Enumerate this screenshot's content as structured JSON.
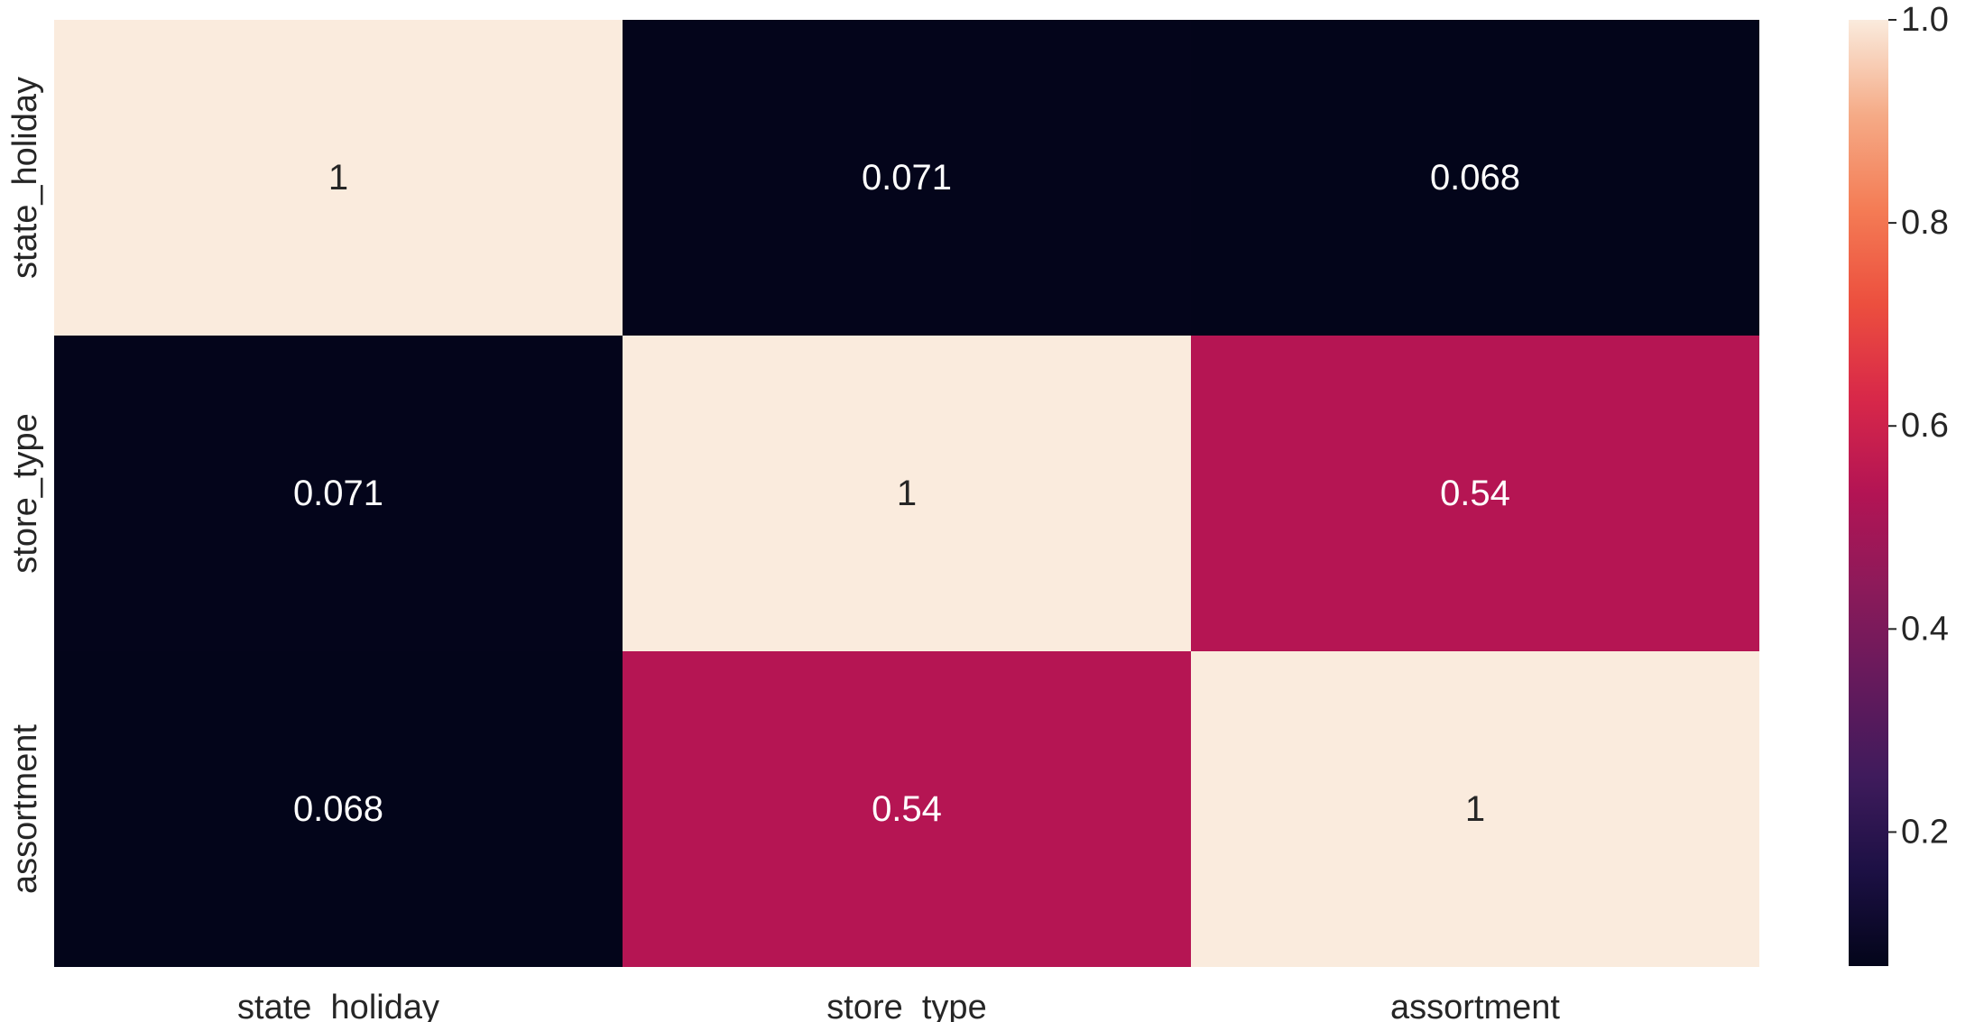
{
  "chart_data": {
    "type": "heatmap",
    "title": "",
    "xlabel": "",
    "ylabel": "",
    "x_categories": [
      "state_holiday",
      "store_type",
      "assortment"
    ],
    "y_categories": [
      "state_holiday",
      "store_type",
      "assortment"
    ],
    "values": [
      [
        1,
        0.071,
        0.068
      ],
      [
        0.071,
        1,
        0.54
      ],
      [
        0.068,
        0.54,
        1
      ]
    ],
    "cell_labels": [
      [
        "1",
        "0.071",
        "0.068"
      ],
      [
        "0.071",
        "1",
        "0.54"
      ],
      [
        "0.068",
        "0.54",
        "1"
      ]
    ],
    "colormap": "rocket",
    "colorbar": {
      "range": [
        0.068,
        1.0
      ],
      "ticks": [
        0.2,
        0.4,
        0.6,
        0.8,
        1.0
      ],
      "tick_labels": [
        "0.2",
        "0.4",
        "0.6",
        "0.8",
        "1.0"
      ],
      "placement": "right"
    },
    "colors": {
      "low": "#03051a",
      "mid": "#cb1b4f",
      "high": "#faebdd",
      "annot_dark": "#262626",
      "annot_light": "#ffffff"
    }
  }
}
